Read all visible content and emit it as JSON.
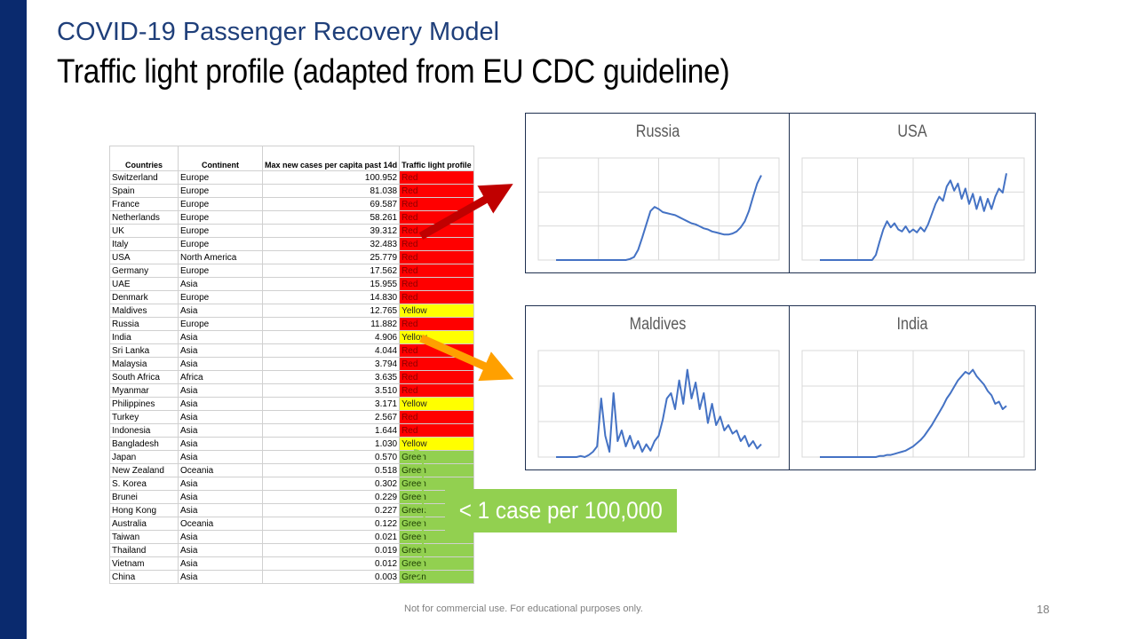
{
  "slide": {
    "subtitle": "COVID-19 Passenger Recovery Model",
    "title": "Traffic light profile (adapted from EU CDC guideline)",
    "footer": "Not for commercial use. For educational purposes only.",
    "page_number": "18",
    "callout": "< 1 case per 100,000"
  },
  "colors": {
    "sidebar": "#0a2a6e",
    "red": "#ff0000",
    "yellow": "#ffff00",
    "green": "#92d050",
    "arrow_red": "#c00000",
    "arrow_orange": "#ffa000",
    "line": "#4472c4"
  },
  "table": {
    "headers": [
      "Countries",
      "Continent",
      "Max new cases per capita past 14d",
      "Traffic light profile"
    ],
    "rows": [
      {
        "country": "Switzerland",
        "continent": "Europe",
        "value": "100.952",
        "profile": "Red"
      },
      {
        "country": "Spain",
        "continent": "Europe",
        "value": "81.038",
        "profile": "Red"
      },
      {
        "country": "France",
        "continent": "Europe",
        "value": "69.587",
        "profile": "Red"
      },
      {
        "country": "Netherlands",
        "continent": "Europe",
        "value": "58.261",
        "profile": "Red"
      },
      {
        "country": "UK",
        "continent": "Europe",
        "value": "39.312",
        "profile": "Red"
      },
      {
        "country": "Italy",
        "continent": "Europe",
        "value": "32.483",
        "profile": "Red"
      },
      {
        "country": "USA",
        "continent": "North America",
        "value": "25.779",
        "profile": "Red"
      },
      {
        "country": "Germany",
        "continent": "Europe",
        "value": "17.562",
        "profile": "Red"
      },
      {
        "country": "UAE",
        "continent": "Asia",
        "value": "15.955",
        "profile": "Red"
      },
      {
        "country": "Denmark",
        "continent": "Europe",
        "value": "14.830",
        "profile": "Red"
      },
      {
        "country": "Maldives",
        "continent": "Asia",
        "value": "12.765",
        "profile": "Yellow"
      },
      {
        "country": "Russia",
        "continent": "Europe",
        "value": "11.882",
        "profile": "Red"
      },
      {
        "country": "India",
        "continent": "Asia",
        "value": "4.906",
        "profile": "Yellow"
      },
      {
        "country": "Sri Lanka",
        "continent": "Asia",
        "value": "4.044",
        "profile": "Red"
      },
      {
        "country": "Malaysia",
        "continent": "Asia",
        "value": "3.794",
        "profile": "Red"
      },
      {
        "country": "South Africa",
        "continent": "Africa",
        "value": "3.635",
        "profile": "Red"
      },
      {
        "country": "Myanmar",
        "continent": "Asia",
        "value": "3.510",
        "profile": "Red"
      },
      {
        "country": "Philippines",
        "continent": "Asia",
        "value": "3.171",
        "profile": "Yellow"
      },
      {
        "country": "Turkey",
        "continent": "Asia",
        "value": "2.567",
        "profile": "Red"
      },
      {
        "country": "Indonesia",
        "continent": "Asia",
        "value": "1.644",
        "profile": "Red"
      },
      {
        "country": "Bangladesh",
        "continent": "Asia",
        "value": "1.030",
        "profile": "Yellow"
      },
      {
        "country": "Japan",
        "continent": "Asia",
        "value": "0.570",
        "profile": "Green"
      },
      {
        "country": "New Zealand",
        "continent": "Oceania",
        "value": "0.518",
        "profile": "Green"
      },
      {
        "country": "S. Korea",
        "continent": "Asia",
        "value": "0.302",
        "profile": "Green"
      },
      {
        "country": "Brunei",
        "continent": "Asia",
        "value": "0.229",
        "profile": "Green"
      },
      {
        "country": "Hong Kong",
        "continent": "Asia",
        "value": "0.227",
        "profile": "Green"
      },
      {
        "country": "Australia",
        "continent": "Oceania",
        "value": "0.122",
        "profile": "Green"
      },
      {
        "country": "Taiwan",
        "continent": "Asia",
        "value": "0.021",
        "profile": "Green"
      },
      {
        "country": "Thailand",
        "continent": "Asia",
        "value": "0.019",
        "profile": "Green"
      },
      {
        "country": "Vietnam",
        "continent": "Asia",
        "value": "0.012",
        "profile": "Green"
      },
      {
        "country": "China",
        "continent": "Asia",
        "value": "0.003",
        "profile": "Green"
      }
    ]
  },
  "chart_data": [
    {
      "type": "line",
      "title": "Russia",
      "ylim": [
        0,
        1
      ],
      "values": [
        0,
        0,
        0,
        0,
        0,
        0,
        0,
        0,
        0,
        0,
        0,
        0,
        0,
        0,
        0,
        0,
        0,
        0,
        0.01,
        0.03,
        0.1,
        0.22,
        0.35,
        0.48,
        0.52,
        0.5,
        0.47,
        0.46,
        0.45,
        0.44,
        0.42,
        0.4,
        0.38,
        0.36,
        0.35,
        0.33,
        0.31,
        0.3,
        0.28,
        0.27,
        0.26,
        0.25,
        0.25,
        0.26,
        0.28,
        0.32,
        0.38,
        0.48,
        0.62,
        0.75,
        0.83
      ]
    },
    {
      "type": "line",
      "title": "USA",
      "ylim": [
        0,
        1
      ],
      "values": [
        0,
        0,
        0,
        0,
        0,
        0,
        0,
        0,
        0,
        0,
        0,
        0,
        0,
        0,
        0,
        0.05,
        0.18,
        0.3,
        0.38,
        0.32,
        0.36,
        0.3,
        0.28,
        0.33,
        0.27,
        0.3,
        0.27,
        0.32,
        0.28,
        0.35,
        0.45,
        0.55,
        0.62,
        0.58,
        0.72,
        0.78,
        0.68,
        0.75,
        0.6,
        0.7,
        0.55,
        0.65,
        0.5,
        0.62,
        0.48,
        0.6,
        0.5,
        0.62,
        0.7,
        0.66,
        0.85
      ]
    },
    {
      "type": "line",
      "title": "Maldives",
      "ylim": [
        0,
        1
      ],
      "values": [
        0,
        0,
        0,
        0,
        0,
        0,
        0.01,
        0,
        0.02,
        0.05,
        0.1,
        0.55,
        0.2,
        0.05,
        0.6,
        0.15,
        0.25,
        0.1,
        0.2,
        0.08,
        0.15,
        0.05,
        0.12,
        0.06,
        0.15,
        0.2,
        0.35,
        0.55,
        0.6,
        0.45,
        0.72,
        0.5,
        0.82,
        0.55,
        0.7,
        0.45,
        0.6,
        0.32,
        0.5,
        0.3,
        0.38,
        0.25,
        0.3,
        0.22,
        0.25,
        0.15,
        0.2,
        0.1,
        0.15,
        0.08,
        0.12
      ]
    },
    {
      "type": "line",
      "title": "India",
      "ylim": [
        0,
        1
      ],
      "values": [
        0,
        0,
        0,
        0,
        0,
        0,
        0,
        0,
        0,
        0,
        0,
        0,
        0,
        0,
        0,
        0,
        0.01,
        0.01,
        0.02,
        0.02,
        0.03,
        0.04,
        0.05,
        0.06,
        0.08,
        0.1,
        0.13,
        0.16,
        0.2,
        0.25,
        0.3,
        0.36,
        0.42,
        0.48,
        0.55,
        0.6,
        0.66,
        0.72,
        0.76,
        0.8,
        0.78,
        0.82,
        0.76,
        0.72,
        0.68,
        0.62,
        0.58,
        0.5,
        0.52,
        0.45,
        0.48
      ]
    }
  ]
}
